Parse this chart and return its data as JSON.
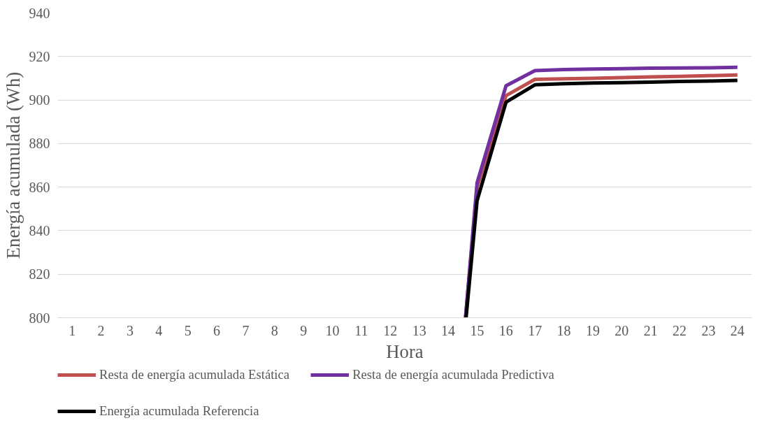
{
  "chart_data": {
    "type": "line",
    "xlabel": "Hora",
    "ylabel": "Energía acumulada (Wh)",
    "xlim": [
      0.5,
      24.5
    ],
    "xticks": [
      1,
      2,
      3,
      4,
      5,
      6,
      7,
      8,
      9,
      10,
      11,
      12,
      13,
      14,
      15,
      16,
      17,
      18,
      19,
      20,
      21,
      22,
      23,
      24
    ],
    "ylim": [
      800,
      940
    ],
    "yticks": [
      800,
      820,
      840,
      860,
      880,
      900,
      920,
      940
    ],
    "grid": "y",
    "legend": "bottom",
    "marker": "none",
    "line_style": "solid",
    "series": [
      {
        "name": "Resta de energía acumulada Estática",
        "color": "#c0504d",
        "x": [
          14.6,
          15,
          16,
          17,
          18,
          19,
          20,
          21,
          22,
          23,
          24
        ],
        "values": [
          800,
          860,
          902,
          909.5,
          909.7,
          910,
          910.3,
          910.6,
          910.9,
          911.2,
          911.5
        ]
      },
      {
        "name": "Resta de energía acumulada Predictiva",
        "color": "#7030a0",
        "x": [
          14.6,
          15,
          16,
          17,
          18,
          19,
          20,
          21,
          22,
          23,
          24
        ],
        "values": [
          800,
          862,
          906.5,
          913.5,
          914,
          914.2,
          914.4,
          914.6,
          914.7,
          914.8,
          915
        ]
      },
      {
        "name": "Energía acumulada Referencia",
        "color": "#000000",
        "x": [
          14.62,
          15,
          16,
          17,
          18,
          19,
          20,
          21,
          22,
          23,
          24
        ],
        "values": [
          800,
          853.8,
          899,
          907,
          907.5,
          907.8,
          908,
          908.2,
          908.5,
          908.7,
          909
        ]
      }
    ]
  }
}
